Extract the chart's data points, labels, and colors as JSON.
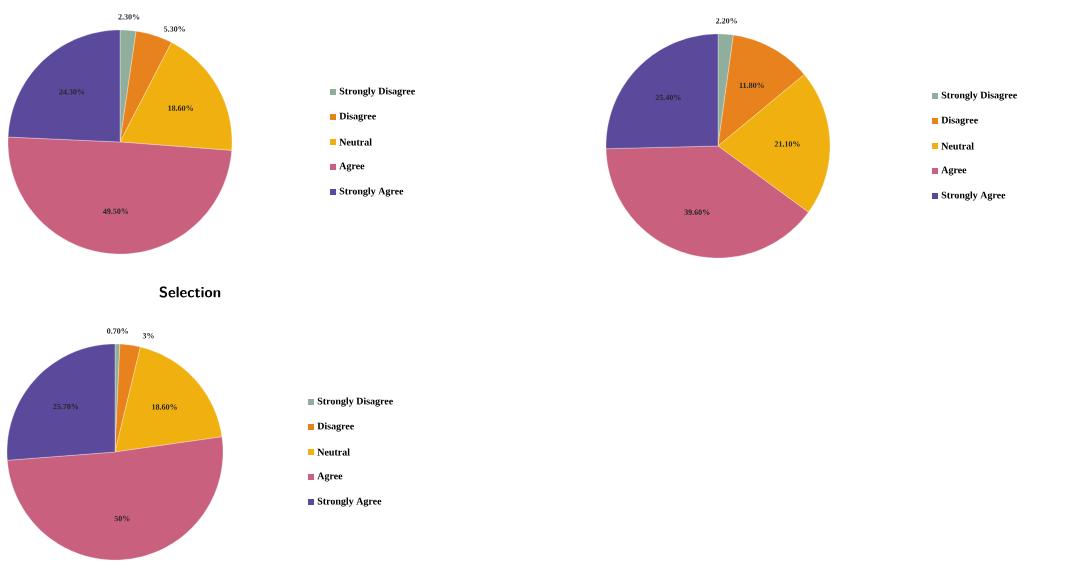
{
  "chart_data": [
    {
      "type": "pie",
      "categories": [
        "Strongly Disagree",
        "Disagree",
        "Neutral",
        "Agree",
        "Strongly Agree"
      ],
      "values": [
        2.3,
        5.3,
        18.6,
        49.5,
        24.3
      ],
      "colors": [
        "#8fae9c",
        "#e8821c",
        "#f0b010",
        "#c9607e",
        "#5b4a9c"
      ],
      "value_labels": [
        "2.30%",
        "5.30%",
        "18.60%",
        "49.50%",
        "24.30%"
      ],
      "legend": "right"
    },
    {
      "type": "pie",
      "categories": [
        "Strongly Disagree",
        "Disagree",
        "Neutral",
        "Agree",
        "Strongly Agree"
      ],
      "values": [
        2.2,
        11.8,
        21.1,
        39.6,
        25.4
      ],
      "colors": [
        "#8fae9c",
        "#e8821c",
        "#f0b010",
        "#c9607e",
        "#5b4a9c"
      ],
      "value_labels": [
        "2.20%",
        "11.80%",
        "21.10%",
        "39.60%",
        "25.40%"
      ],
      "legend": "right"
    },
    {
      "type": "pie",
      "title": "Selection",
      "categories": [
        "Strongly Disagree",
        "Disagree",
        "Neutral",
        "Agree",
        "Strongly Agree"
      ],
      "values": [
        0.7,
        3,
        18.6,
        50,
        25.7
      ],
      "colors": [
        "#8fae9c",
        "#e8821c",
        "#f0b010",
        "#c9607e",
        "#5b4a9c"
      ],
      "value_labels": [
        "0.70%",
        "3%",
        "18.60%",
        "50%",
        "25.70%"
      ],
      "legend": "right"
    }
  ]
}
